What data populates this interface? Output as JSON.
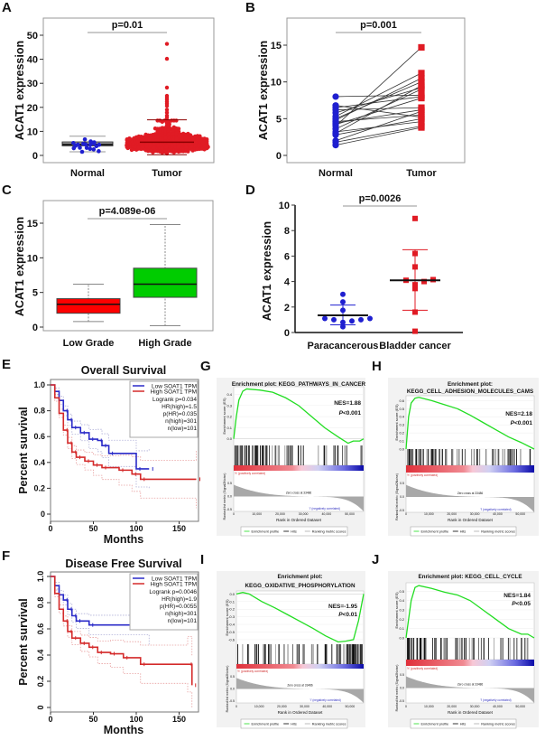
{
  "colors": {
    "normal": "#1f1fd0",
    "tumor": "#e01b24",
    "low_grade": "#ff0000",
    "high_grade": "#00cc00",
    "es_curve": "#22dd22",
    "km_low": "#2b2bc8",
    "km_high": "#d42a2a"
  },
  "chart_data": [
    {
      "panel": "A",
      "type": "scatter",
      "ylabel": "ACAT1 expression",
      "categories": [
        "Normal",
        "Tumor"
      ],
      "yticks": [
        0,
        10,
        20,
        30,
        40,
        50
      ],
      "ylim": [
        0,
        55
      ],
      "p_text": "p=0.01",
      "groups": [
        {
          "name": "Normal",
          "n": 19,
          "median": 4.6,
          "q1": 4.0,
          "q3": 5.6,
          "whiskers": [
            1.5,
            8.0
          ]
        },
        {
          "name": "Tumor",
          "n": 400,
          "median": 5.5,
          "whiskers": [
            0.3,
            14.8
          ],
          "outliers": [
            46.4,
            40.2,
            28.2,
            24.8,
            24.0,
            23.2,
            22.3,
            21.5,
            20.6,
            19.0,
            17.8,
            16.5,
            15.6
          ]
        }
      ]
    },
    {
      "panel": "B",
      "type": "scatter",
      "ylabel": "ACAT1 expression",
      "categories": [
        "Normal",
        "Tumor"
      ],
      "yticks": [
        0,
        5,
        10,
        15
      ],
      "ylim": [
        0,
        17.5
      ],
      "p_text": "p=0.001",
      "pairs_normal": [
        1.4,
        1.8,
        2.0,
        2.8,
        3.0,
        3.2,
        3.6,
        4.0,
        4.2,
        4.4,
        4.6,
        5.0,
        5.3,
        5.8,
        6.2,
        6.5,
        6.8,
        8.0,
        4.8
      ],
      "pairs_tumor": [
        3.8,
        4.0,
        6.0,
        5.0,
        9.5,
        4.6,
        9.0,
        14.7,
        7.8,
        6.2,
        5.5,
        10.0,
        11.2,
        9.2,
        6.5,
        8.0,
        5.2,
        8.2,
        10.5
      ]
    },
    {
      "panel": "C",
      "type": "box",
      "ylabel": "ACAT1 expression",
      "categories": [
        "Low Grade",
        "High Grade"
      ],
      "yticks": [
        0,
        5,
        10,
        15
      ],
      "ylim": [
        0,
        18
      ],
      "p_text": "p=4.089e-06",
      "boxes": [
        {
          "name": "Low Grade",
          "whiskers": [
            0.8,
            6.2
          ],
          "q1": 2.0,
          "median": 3.3,
          "q3": 4.1
        },
        {
          "name": "High Grade",
          "whiskers": [
            0.2,
            14.8
          ],
          "q1": 4.3,
          "median": 6.2,
          "q3": 8.5
        }
      ]
    },
    {
      "panel": "D",
      "type": "scatter",
      "ylabel": "ACAT1 expression",
      "categories": [
        "Paracancerous",
        "Bladder cancer"
      ],
      "yticks": [
        0,
        2,
        4,
        6,
        8,
        10
      ],
      "ylim": [
        0,
        10
      ],
      "p_text": "p=0.0026",
      "groups": [
        {
          "name": "Paracancerous",
          "values": [
            0.45,
            0.8,
            0.9,
            1.0,
            1.0,
            1.1,
            1.1,
            1.75,
            2.4,
            3.0
          ],
          "mean": 1.35,
          "sd": [
            0.6,
            2.15
          ]
        },
        {
          "name": "Bladder cancer",
          "values": [
            0.1,
            1.6,
            3.45,
            3.75,
            4.0,
            4.1,
            4.15,
            5.15,
            6.2,
            8.95
          ],
          "mean": 4.1,
          "sd": [
            1.75,
            6.5
          ]
        }
      ]
    },
    {
      "panel": "E",
      "type": "line",
      "title": "Overall Survival",
      "xlabel": "Months",
      "ylabel": "Percent survival",
      "xticks": [
        0,
        50,
        100,
        150
      ],
      "yticks": [
        "0",
        "0.2",
        "0.4",
        "0.6",
        "0.8",
        "1.0"
      ],
      "ytick_values": [
        0,
        0.2,
        0.4,
        0.6,
        0.8,
        1.0
      ],
      "xlim": [
        0,
        172
      ],
      "ylim": [
        0,
        1
      ],
      "series": [
        {
          "name": "Low SOAT1 TPM",
          "points": [
            [
              0,
              1
            ],
            [
              5,
              0.95
            ],
            [
              10,
              0.88
            ],
            [
              15,
              0.8
            ],
            [
              20,
              0.73
            ],
            [
              25,
              0.67
            ],
            [
              35,
              0.63
            ],
            [
              45,
              0.58
            ],
            [
              55,
              0.57
            ],
            [
              60,
              0.53
            ],
            [
              68,
              0.47
            ],
            [
              100,
              0.35
            ],
            [
              115,
              0.35
            ]
          ]
        },
        {
          "name": "High SOAT1 TPM",
          "points": [
            [
              0,
              1
            ],
            [
              5,
              0.9
            ],
            [
              10,
              0.78
            ],
            [
              15,
              0.65
            ],
            [
              20,
              0.55
            ],
            [
              25,
              0.48
            ],
            [
              30,
              0.44
            ],
            [
              40,
              0.41
            ],
            [
              50,
              0.38
            ],
            [
              60,
              0.36
            ],
            [
              80,
              0.34
            ],
            [
              95,
              0.31
            ],
            [
              105,
              0.27
            ],
            [
              170,
              0.27
            ]
          ]
        }
      ],
      "stats": [
        "Logrank p=0.034",
        "HR(high)=1.5",
        "p(HR)=0.035",
        "n(high)=301",
        "n(low)=101"
      ]
    },
    {
      "panel": "F",
      "type": "line",
      "title": "Disease Free Survival",
      "xlabel": "Months",
      "ylabel": "Percent survival",
      "xticks": [
        0,
        50,
        100,
        150
      ],
      "yticks": [
        "0",
        "0.2",
        "0.4",
        "0.6",
        "0.8",
        "1.0"
      ],
      "ytick_values": [
        0,
        0.2,
        0.4,
        0.6,
        0.8,
        1.0
      ],
      "xlim": [
        0,
        172
      ],
      "ylim": [
        0,
        1
      ],
      "series": [
        {
          "name": "Low SOAT1 TPM",
          "points": [
            [
              0,
              1
            ],
            [
              5,
              0.93
            ],
            [
              10,
              0.86
            ],
            [
              15,
              0.82
            ],
            [
              20,
              0.75
            ],
            [
              25,
              0.7
            ],
            [
              30,
              0.66
            ],
            [
              45,
              0.63
            ],
            [
              115,
              0.63
            ]
          ]
        },
        {
          "name": "High SOAT1 TPM",
          "points": [
            [
              0,
              1
            ],
            [
              5,
              0.87
            ],
            [
              10,
              0.75
            ],
            [
              15,
              0.66
            ],
            [
              20,
              0.58
            ],
            [
              25,
              0.53
            ],
            [
              35,
              0.49
            ],
            [
              45,
              0.46
            ],
            [
              55,
              0.42
            ],
            [
              70,
              0.41
            ],
            [
              85,
              0.38
            ],
            [
              105,
              0.33
            ],
            [
              160,
              0.33
            ],
            [
              165,
              0.17
            ]
          ]
        }
      ],
      "stats": [
        "Logrank p=0.0046",
        "HR(high)=1.9",
        "p(HR)=0.0055",
        "n(high)=301",
        "n(low)=101"
      ]
    },
    {
      "panel": "G",
      "type": "line",
      "title_lines": [
        "Enrichment plot: KEGG_PATHWAYS_IN_CANCER"
      ],
      "nes": "NES=1.88",
      "p_symbol": "P",
      "p_value": "<0.001",
      "es_range": [
        -0.06,
        0.47
      ],
      "es_ticks": [
        "0.4",
        "0.3",
        "0.2",
        "0.1",
        "0.0"
      ],
      "es_tick_values": [
        0.4,
        0.3,
        0.2,
        0.1,
        0.0
      ],
      "es_curve": [
        [
          0,
          0
        ],
        [
          0.02,
          0.2
        ],
        [
          0.04,
          0.35
        ],
        [
          0.07,
          0.43
        ],
        [
          0.1,
          0.45
        ],
        [
          0.2,
          0.44
        ],
        [
          0.3,
          0.42
        ],
        [
          0.4,
          0.37
        ],
        [
          0.5,
          0.3
        ],
        [
          0.6,
          0.2
        ],
        [
          0.7,
          0.1
        ],
        [
          0.8,
          0.02
        ],
        [
          0.88,
          -0.04
        ],
        [
          0.92,
          -0.02
        ],
        [
          0.97,
          -0.02
        ],
        [
          1,
          0
        ]
      ],
      "direction": "positive"
    },
    {
      "panel": "H",
      "type": "line",
      "title_lines": [
        "Enrichment plot:",
        "KEGG_CELL_ADHESION_MOLECULES_CAMS"
      ],
      "nes": "NES=2.18",
      "p_symbol": "P",
      "p_value": "<0.001",
      "es_range": [
        0,
        0.66
      ],
      "es_ticks": [
        "0.6",
        "0.5",
        "0.4",
        "0.3",
        "0.2",
        "0.1",
        "0.0"
      ],
      "es_tick_values": [
        0.6,
        0.5,
        0.4,
        0.3,
        0.2,
        0.1,
        0.0
      ],
      "es_curve": [
        [
          0,
          0
        ],
        [
          0.02,
          0.4
        ],
        [
          0.04,
          0.57
        ],
        [
          0.07,
          0.63
        ],
        [
          0.1,
          0.64
        ],
        [
          0.2,
          0.6
        ],
        [
          0.3,
          0.55
        ],
        [
          0.4,
          0.5
        ],
        [
          0.5,
          0.42
        ],
        [
          0.6,
          0.33
        ],
        [
          0.7,
          0.24
        ],
        [
          0.8,
          0.15
        ],
        [
          0.9,
          0.08
        ],
        [
          1,
          0
        ]
      ],
      "direction": "positive"
    },
    {
      "panel": "I",
      "type": "line",
      "title_lines": [
        "Enrichment plot:",
        "KEGG_OXIDATIVE_PHOSPHORYLATION"
      ],
      "nes": "NES=-1.95",
      "p_symbol": "P",
      "p_value": "<0.01",
      "es_range": [
        -0.66,
        0.04
      ],
      "es_ticks": [
        "0.0",
        "-0.1",
        "-0.2",
        "-0.3",
        "-0.4",
        "-0.5",
        "-0.6"
      ],
      "es_tick_values": [
        0.0,
        -0.1,
        -0.2,
        -0.3,
        -0.4,
        -0.5,
        -0.6
      ],
      "es_curve": [
        [
          0,
          0
        ],
        [
          0.05,
          0.02
        ],
        [
          0.1,
          0
        ],
        [
          0.2,
          -0.1
        ],
        [
          0.3,
          -0.18
        ],
        [
          0.4,
          -0.27
        ],
        [
          0.5,
          -0.36
        ],
        [
          0.6,
          -0.45
        ],
        [
          0.7,
          -0.55
        ],
        [
          0.8,
          -0.63
        ],
        [
          0.86,
          -0.62
        ],
        [
          0.92,
          -0.6
        ],
        [
          0.96,
          -0.35
        ],
        [
          1,
          0
        ]
      ],
      "direction": "negative"
    },
    {
      "panel": "J",
      "type": "line",
      "title_lines": [
        "Enrichment plot: KEGG_CELL_CYCLE"
      ],
      "nes": "NES=1.84",
      "p_symbol": "P",
      "p_value": "<0.05",
      "es_range": [
        0,
        0.59
      ],
      "es_ticks": [
        "0.5",
        "0.4",
        "0.3",
        "0.2",
        "0.1",
        "0.0"
      ],
      "es_tick_values": [
        0.5,
        0.4,
        0.3,
        0.2,
        0.1,
        0.0
      ],
      "es_curve": [
        [
          0,
          0
        ],
        [
          0.02,
          0.2
        ],
        [
          0.04,
          0.4
        ],
        [
          0.07,
          0.54
        ],
        [
          0.1,
          0.56
        ],
        [
          0.2,
          0.53
        ],
        [
          0.3,
          0.49
        ],
        [
          0.4,
          0.46
        ],
        [
          0.5,
          0.4
        ],
        [
          0.6,
          0.3
        ],
        [
          0.7,
          0.2
        ],
        [
          0.8,
          0.1
        ],
        [
          0.9,
          0.04
        ],
        [
          0.95,
          0.04
        ],
        [
          1,
          0
        ]
      ],
      "direction": "positive"
    }
  ],
  "gsea_common": {
    "es_ylabel": "Enrichment score (ES)",
    "rank_ylabel": "Ranked list metric (Signal2Noise)",
    "xlabel": "Rank in Ordered Dataset",
    "xticks": [
      "0",
      "10,000",
      "20,000",
      "30,000",
      "40,000",
      "50,000"
    ],
    "xtick_values": [
      0,
      10000,
      20000,
      30000,
      40000,
      50000
    ],
    "dataset_size": 56000,
    "rank_ticks": [
      "0.5",
      "0.0",
      "-0.5"
    ],
    "pos_label": "'h' (positively correlated)",
    "neg_label": "'l' (negatively correlated)",
    "zero_cross": "Zero cross at 33486",
    "legend": [
      "Enrichment profile",
      "Hits",
      "Ranking metric scores"
    ]
  }
}
